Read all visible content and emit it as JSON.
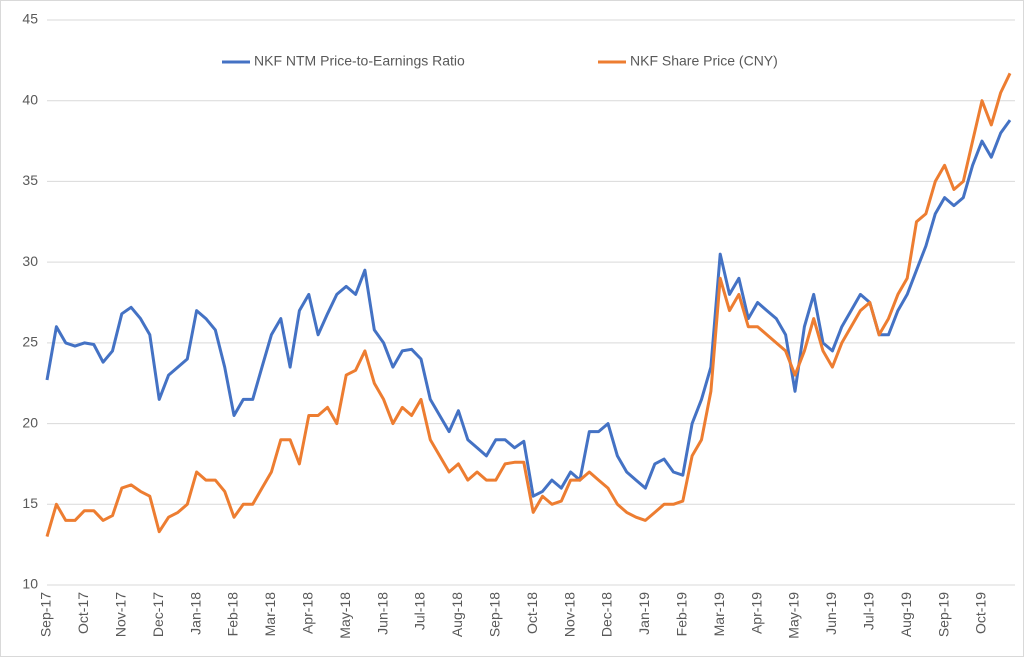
{
  "chart_data": {
    "type": "line",
    "categories": [
      "Sep-17",
      null,
      null,
      null,
      "Oct-17",
      null,
      null,
      null,
      "Nov-17",
      null,
      null,
      null,
      "Dec-17",
      null,
      null,
      null,
      "Jan-18",
      null,
      null,
      null,
      "Feb-18",
      null,
      null,
      null,
      "Mar-18",
      null,
      null,
      null,
      "Apr-18",
      null,
      null,
      null,
      "May-18",
      null,
      null,
      null,
      "Jun-18",
      null,
      null,
      null,
      "Jul-18",
      null,
      null,
      null,
      "Aug-18",
      null,
      null,
      null,
      "Sep-18",
      null,
      null,
      null,
      "Oct-18",
      null,
      null,
      null,
      "Nov-18",
      null,
      null,
      null,
      "Dec-18",
      null,
      null,
      null,
      "Jan-19",
      null,
      null,
      null,
      "Feb-19",
      null,
      null,
      null,
      "Mar-19",
      null,
      null,
      null,
      "Apr-19",
      null,
      null,
      null,
      "May-19",
      null,
      null,
      null,
      "Jun-19",
      null,
      null,
      null,
      "Jul-19",
      null,
      null,
      null,
      "Aug-19",
      null,
      null,
      null,
      "Sep-19",
      null,
      null,
      null,
      "Oct-19",
      null,
      null,
      null
    ],
    "series": [
      {
        "name": "NKF NTM Price-to-Earnings Ratio",
        "color": "#4472c4",
        "values": [
          22.7,
          26,
          25,
          24.8,
          25,
          24.9,
          23.8,
          24.5,
          26.8,
          27.2,
          26.5,
          25.5,
          21.5,
          23,
          23.5,
          24,
          27,
          26.5,
          25.8,
          23.5,
          20.5,
          21.5,
          21.5,
          23.5,
          25.5,
          26.5,
          23.5,
          27,
          28,
          25.5,
          26.8,
          28,
          28.5,
          28,
          29.5,
          25.8,
          25,
          23.5,
          24.5,
          24.6,
          24,
          21.5,
          20.5,
          19.5,
          20.8,
          19,
          18.5,
          18,
          19,
          19,
          18.5,
          18.9,
          15.5,
          15.8,
          16.5,
          16,
          17,
          16.5,
          19.5,
          19.5,
          20,
          18,
          17,
          16.5,
          16,
          17.5,
          17.8,
          17,
          16.8,
          20,
          21.5,
          23.5,
          30.5,
          28,
          29,
          26.5,
          27.5,
          27,
          26.5,
          25.5,
          22,
          26,
          28,
          25,
          24.5,
          26,
          27,
          28,
          27.5,
          25.5,
          25.5,
          27,
          28,
          29.5,
          31,
          33,
          34,
          33.5,
          34,
          36,
          37.5,
          36.5,
          38,
          38.8
        ]
      },
      {
        "name": "NKF Share Price (CNY)",
        "color": "#ed7d31",
        "values": [
          13,
          15,
          14,
          14,
          14.6,
          14.6,
          14,
          14.3,
          16,
          16.2,
          15.8,
          15.5,
          13.3,
          14.2,
          14.5,
          15,
          17,
          16.5,
          16.5,
          15.8,
          14.2,
          15,
          15,
          16,
          17,
          19,
          19,
          17.5,
          20.5,
          20.5,
          21,
          20,
          23,
          23.3,
          24.5,
          22.5,
          21.5,
          20,
          21,
          20.5,
          21.5,
          19,
          18,
          17,
          17.5,
          16.5,
          17,
          16.5,
          16.5,
          17.5,
          17.6,
          17.6,
          14.5,
          15.5,
          15,
          15.2,
          16.5,
          16.5,
          17,
          16.5,
          16,
          15,
          14.5,
          14.2,
          14,
          14.5,
          15,
          15,
          15.2,
          18,
          19,
          22,
          29,
          27,
          28,
          26,
          26,
          25.5,
          25,
          24.5,
          23,
          24.5,
          26.5,
          24.5,
          23.5,
          25,
          26,
          27,
          27.5,
          25.5,
          26.5,
          28,
          29,
          32.5,
          33,
          35,
          36,
          34.5,
          35,
          37.5,
          40,
          38.5,
          40.5,
          41.7
        ]
      }
    ],
    "ylim": [
      10,
      45
    ],
    "yticks": [
      10,
      15,
      20,
      25,
      30,
      35,
      40,
      45
    ],
    "grid": true,
    "legend": "top"
  }
}
